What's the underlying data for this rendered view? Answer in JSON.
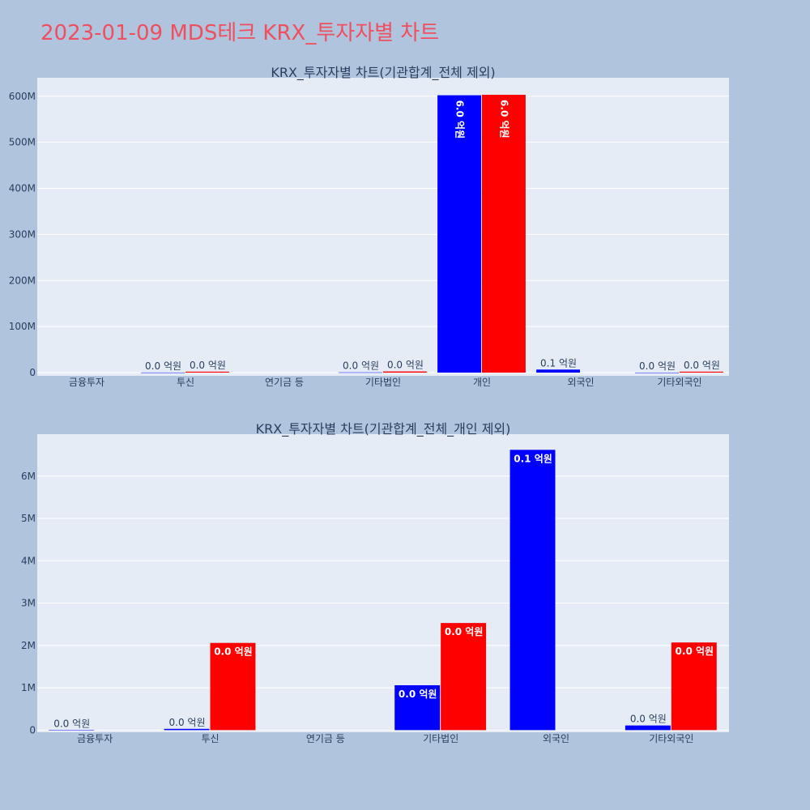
{
  "title": "2023-01-09 MDS테크 KRX_투자자별 차트",
  "colors": {
    "background": "#b0c4de",
    "plot_background": "#e5ecf6",
    "grid": "#ffffff",
    "title": "#ef4f5f",
    "text": "#2a3f5f",
    "sell": "#0000ff",
    "buy": "#ff0000"
  },
  "chart_data": [
    {
      "type": "bar",
      "title": "KRX_투자자별 차트(기관합계_전체 제외)",
      "categories": [
        "금융투자",
        "투신",
        "연기금 등",
        "기타법인",
        "개인",
        "외국인",
        "기타외국인"
      ],
      "ylim": [
        -7000000,
        640000000
      ],
      "yticks": [
        0,
        100000000,
        200000000,
        300000000,
        400000000,
        500000000,
        600000000
      ],
      "ytick_labels": [
        "0",
        "100M",
        "200M",
        "300M",
        "400M",
        "500M",
        "600M"
      ],
      "series": [
        {
          "color": "#0000ff",
          "values": [
            null,
            200000,
            null,
            500000,
            602000000,
            6600000,
            100000
          ],
          "labels": [
            "",
            "0.0 억원",
            "",
            "0.0 억원",
            "6.0 억원",
            "0.1 억원",
            "0.0 억원"
          ]
        },
        {
          "color": "#ff0000",
          "values": [
            null,
            2050000,
            null,
            2530000,
            603000000,
            null,
            2060000
          ],
          "labels": [
            "",
            "0.0 억원",
            "",
            "0.0 억원",
            "6.0 억원",
            "",
            "0.0 억원"
          ]
        }
      ]
    },
    {
      "type": "bar",
      "title": "KRX_투자자별 차트(기관합계_전체_개인 제외)",
      "categories": [
        "금융투자",
        "투신",
        "연기금 등",
        "기타법인",
        "외국인",
        "기타외국인"
      ],
      "ylim": [
        -50000,
        6990000
      ],
      "yticks": [
        0,
        1000000,
        2000000,
        3000000,
        4000000,
        5000000,
        6000000
      ],
      "ytick_labels": [
        "0",
        "1M",
        "2M",
        "3M",
        "4M",
        "5M",
        "6M"
      ],
      "series": [
        {
          "color": "#0000ff",
          "values": [
            0,
            30000,
            null,
            1060000,
            6620000,
            110000
          ],
          "labels": [
            "0.0 억원",
            "0.0 억원",
            "",
            "0.0 억원",
            "0.1 억원",
            "0.0 억원"
          ]
        },
        {
          "color": "#ff0000",
          "values": [
            null,
            2060000,
            null,
            2530000,
            null,
            2070000
          ],
          "labels": [
            "",
            "0.0 억원",
            "",
            "0.0 억원",
            "",
            "0.0 억원"
          ]
        }
      ]
    }
  ]
}
